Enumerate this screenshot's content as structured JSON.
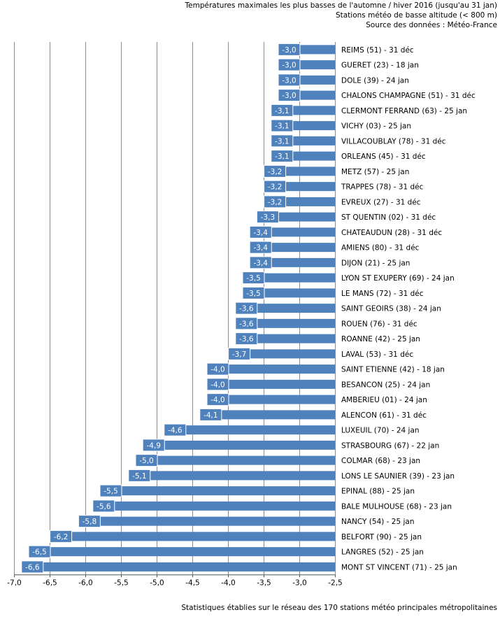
{
  "chart_data": {
    "type": "bar",
    "orientation": "horizontal",
    "title": "Températures maximales les plus basses de l'automne / hiver 2016 (jusqu'au 31 jan)",
    "subtitle": "Stations météo de basse altitude (< 800 m)",
    "source": "Source des données : Météo-France",
    "footer": "Statistiques établies sur le réseau des 170 stations météo principales métropolitaines",
    "xlim": [
      -7.0,
      -2.5
    ],
    "xticks": [
      "-7,0",
      "-6,5",
      "-6,0",
      "-5,5",
      "-5,0",
      "-4,5",
      "-4,0",
      "-3,5",
      "-3,0",
      "-2,5"
    ],
    "grid": "vertical",
    "bar_color": "#4f81bd",
    "label_color": "#4f81bd",
    "categories": [
      "REIMS (51) - 31 déc",
      "GUERET (23) - 18 jan",
      "DOLE (39) - 24 jan",
      "CHALONS CHAMPAGNE (51) - 31 déc",
      "CLERMONT FERRAND (63) - 25 jan",
      "VICHY (03) - 25 jan",
      "VILLACOUBLAY (78) - 31 déc",
      "ORLEANS (45) - 31 déc",
      "METZ (57) - 25 jan",
      "TRAPPES (78) - 31 déc",
      "EVREUX (27) - 31 déc",
      "ST QUENTIN (02) - 31 déc",
      "CHATEAUDUN (28) - 31 déc",
      "AMIENS (80) - 31 déc",
      "DIJON (21) - 25 jan",
      "LYON ST EXUPERY (69) - 24 jan",
      "LE MANS (72) - 31 déc",
      "SAINT GEOIRS (38) - 24 jan",
      "ROUEN (76) - 31 déc",
      "ROANNE (42) - 25 jan",
      "LAVAL (53) - 31 déc",
      "SAINT ETIENNE (42) - 18 jan",
      "BESANCON (25) - 24 jan",
      "AMBERIEU (01) - 24 jan",
      "ALENCON (61) - 31 déc",
      "LUXEUIL (70) - 24 jan",
      "STRASBOURG (67) - 22 jan",
      "COLMAR (68) - 23 jan",
      "LONS LE SAUNIER (39) - 23 jan",
      "EPINAL (88) - 25 jan",
      "BALE MULHOUSE (68) - 23 jan",
      "NANCY (54) - 25 jan",
      "BELFORT (90) - 25 jan",
      "LANGRES (52) - 25 jan",
      "MONT ST VINCENT (71) - 25 jan"
    ],
    "values": [
      -3.0,
      -3.0,
      -3.0,
      -3.0,
      -3.1,
      -3.1,
      -3.1,
      -3.1,
      -3.2,
      -3.2,
      -3.2,
      -3.3,
      -3.4,
      -3.4,
      -3.4,
      -3.5,
      -3.5,
      -3.6,
      -3.6,
      -3.6,
      -3.7,
      -4.0,
      -4.0,
      -4.0,
      -4.1,
      -4.6,
      -4.9,
      -5.0,
      -5.1,
      -5.5,
      -5.6,
      -5.8,
      -6.2,
      -6.5,
      -6.6
    ],
    "value_labels": [
      "-3,0",
      "-3,0",
      "-3,0",
      "-3,0",
      "-3,1",
      "-3,1",
      "-3,1",
      "-3,1",
      "-3,2",
      "-3,2",
      "-3,2",
      "-3,3",
      "-3,4",
      "-3,4",
      "-3,4",
      "-3,5",
      "-3,5",
      "-3,6",
      "-3,6",
      "-3,6",
      "-3,7",
      "-4,0",
      "-4,0",
      "-4,0",
      "-4,1",
      "-4,6",
      "-4,9",
      "-5,0",
      "-5,1",
      "-5,5",
      "-5,6",
      "-5,8",
      "-6,2",
      "-6,5",
      "-6,6"
    ]
  }
}
